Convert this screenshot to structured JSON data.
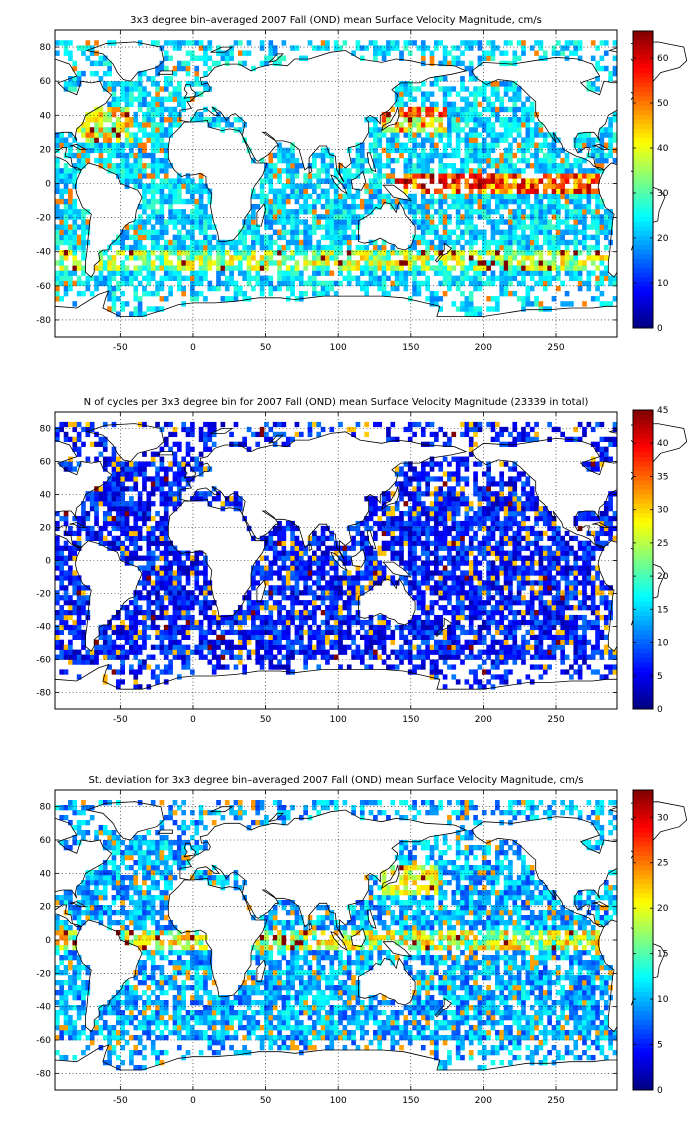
{
  "chart_data": [
    {
      "type": "heatmap",
      "title": "3x3 degree bin–averaged 2007 Fall (OND) mean Surface Velocity Magnitude, cm/s",
      "xlabel": "",
      "ylabel": "",
      "xlim": [
        -95,
        292
      ],
      "ylim": [
        -90,
        90
      ],
      "xticks": [
        -50,
        0,
        50,
        100,
        150,
        200,
        250
      ],
      "yticks": [
        -80,
        -60,
        -40,
        -20,
        0,
        20,
        40,
        60,
        80
      ],
      "grid": true,
      "bin_size_deg": 3,
      "colorbar": {
        "min": 0,
        "max": 66,
        "ticks": [
          0,
          10,
          20,
          30,
          40,
          50,
          60
        ],
        "colormap": "jet"
      },
      "field": "mean"
    },
    {
      "type": "heatmap",
      "title": "N of cycles per 3x3 degree bin for 2007 Fall (OND) mean Surface Velocity Magnitude (23339 in total)",
      "xlabel": "",
      "ylabel": "",
      "xlim": [
        -95,
        292
      ],
      "ylim": [
        -90,
        90
      ],
      "xticks": [
        -50,
        0,
        50,
        100,
        150,
        200,
        250
      ],
      "yticks": [
        -80,
        -60,
        -40,
        -20,
        0,
        20,
        40,
        60,
        80
      ],
      "grid": true,
      "bin_size_deg": 3,
      "colorbar": {
        "min": 0,
        "max": 45,
        "ticks": [
          0,
          5,
          10,
          15,
          20,
          25,
          30,
          35,
          40,
          45
        ],
        "colormap": "jet"
      },
      "field": "count"
    },
    {
      "type": "heatmap",
      "title": "St. deviation for 3x3 degree bin–averaged 2007 Fall (OND) mean Surface Velocity Magnitude, cm/s",
      "xlabel": "",
      "ylabel": "",
      "xlim": [
        -95,
        292
      ],
      "ylim": [
        -90,
        90
      ],
      "xticks": [
        -50,
        0,
        50,
        100,
        150,
        200,
        250
      ],
      "yticks": [
        -80,
        -60,
        -40,
        -20,
        0,
        20,
        40,
        60,
        80
      ],
      "grid": true,
      "bin_size_deg": 3,
      "colorbar": {
        "min": 0,
        "max": 33,
        "ticks": [
          0,
          5,
          10,
          15,
          20,
          25,
          30
        ],
        "colormap": "jet"
      },
      "field": "std"
    }
  ]
}
